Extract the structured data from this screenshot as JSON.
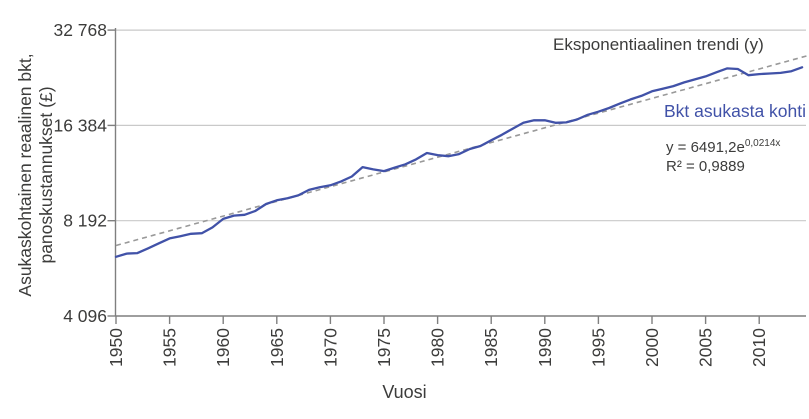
{
  "colors": {
    "series_blue": "#4152a8",
    "trend_gray": "#999999",
    "gridline": "#c9c9c9",
    "axis": "#7f7f7f",
    "text": "#3c3c3b"
  },
  "annotations": {
    "trend_label": "Eksponentiaalinen trendi (y)",
    "series_label": "Bkt asukasta kohti",
    "equation_base": "y = 6491,2e",
    "equation_exponent": "0,0214x",
    "r_squared": "R² = 0,9889"
  },
  "axes": {
    "x_title": "Vuosi",
    "y_title_line1": "Asukaskohtainen reaalinen bkt,",
    "y_title_line2": "panoskustannukset (£)"
  },
  "chart_data": {
    "type": "line",
    "title": "",
    "xlabel": "Vuosi",
    "ylabel": "Asukaskohtainen reaalinen bkt, panoskustannukset (£)",
    "y_scale": "log2",
    "ylim": [
      4096,
      32768
    ],
    "xlim": [
      1950,
      2014.5
    ],
    "grid": "horizontal",
    "legend_position": "inline-annotations",
    "y_ticks": [
      {
        "value": 32768,
        "label": "32 768"
      },
      {
        "value": 16384,
        "label": "16 384"
      },
      {
        "value": 8192,
        "label": "8 192"
      },
      {
        "value": 4096,
        "label": "4 096"
      }
    ],
    "x_ticks": [
      1950,
      1955,
      1960,
      1965,
      1970,
      1975,
      1980,
      1985,
      1990,
      1995,
      2000,
      2005,
      2010
    ],
    "series": [
      {
        "name": "Bkt asukasta kohti",
        "color": "#4152a8",
        "x_start": 1950,
        "x_step": 1,
        "values": [
          6300,
          6450,
          6470,
          6700,
          6950,
          7200,
          7320,
          7450,
          7480,
          7800,
          8300,
          8500,
          8550,
          8800,
          9250,
          9500,
          9650,
          9850,
          10250,
          10450,
          10600,
          10900,
          11300,
          12100,
          11900,
          11750,
          12050,
          12350,
          12800,
          13400,
          13200,
          13100,
          13300,
          13800,
          14100,
          14700,
          15300,
          16000,
          16700,
          17000,
          17000,
          16700,
          16750,
          17100,
          17700,
          18100,
          18600,
          19200,
          19800,
          20300,
          21000,
          21400,
          21800,
          22400,
          22900,
          23400,
          24100,
          24800,
          24700,
          23600,
          23800,
          23900,
          24000,
          24300,
          25000
        ]
      }
    ],
    "trend": {
      "name": "Eksponentiaalinen trendi (y)",
      "equation": "y = 6491,2e^0,0214x",
      "r_squared": 0.9889,
      "start_value_at_1950": 6840,
      "growth_rate": 0.0214,
      "x_start": 1950,
      "x_end": 2015.3,
      "style": "dashed",
      "color": "#999999"
    }
  }
}
